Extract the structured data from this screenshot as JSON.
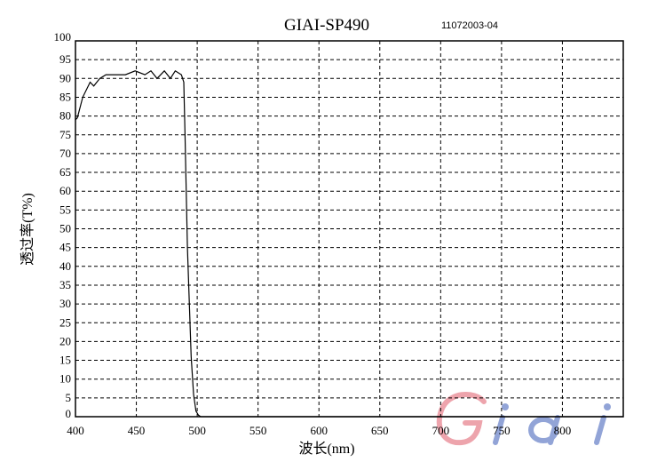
{
  "chart_data": {
    "type": "line",
    "title": "GIAI-SP490",
    "subtitle": "11072003-04",
    "xlabel": "波长(nm)",
    "ylabel": "透过率(T%)",
    "xlim": [
      400,
      850
    ],
    "ylim": [
      0,
      100
    ],
    "xticks": [
      400,
      450,
      500,
      550,
      600,
      650,
      700,
      750,
      800
    ],
    "yticks": [
      0,
      5,
      10,
      15,
      20,
      25,
      30,
      35,
      40,
      45,
      50,
      55,
      60,
      65,
      70,
      75,
      80,
      85,
      90,
      95,
      100
    ],
    "grid": true,
    "line_color": "#000000",
    "series": [
      {
        "x": [
          400,
          401.5,
          406,
          412,
          415,
          420,
          425,
          441,
          449,
          457,
          462,
          467,
          473,
          478,
          482,
          487,
          489,
          490,
          492,
          495,
          497,
          499,
          501,
          503,
          520,
          600,
          700,
          850
        ],
        "y": [
          79,
          79.5,
          85,
          89,
          88,
          90,
          91,
          91,
          92,
          91,
          92,
          90,
          92,
          90,
          92,
          91,
          89,
          75,
          45,
          16,
          6,
          1.5,
          0.4,
          0,
          0,
          0,
          0,
          0
        ]
      }
    ]
  },
  "logo": {
    "text": "Giai",
    "colors": [
      "#e05a6a",
      "#3a5ab8"
    ]
  }
}
